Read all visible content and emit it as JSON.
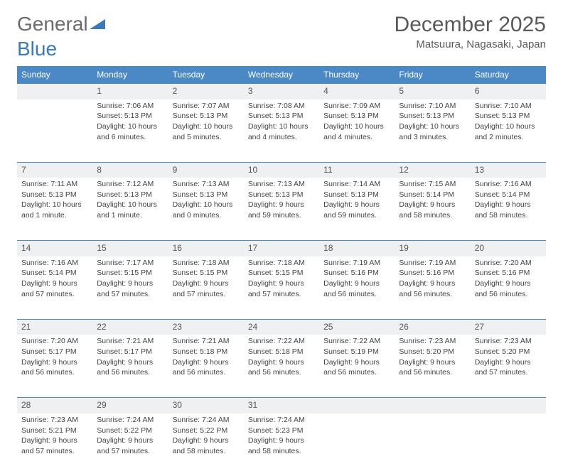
{
  "logo": {
    "text1": "General",
    "text2": "Blue"
  },
  "title": "December 2025",
  "location": "Matsuura, Nagasaki, Japan",
  "colors": {
    "header_bg": "#4a89c6",
    "header_fg": "#ffffff",
    "daynum_bg": "#eef0f2",
    "border": "#4a89c6",
    "logo_gray": "#6b6b6b",
    "logo_blue": "#3a7ab8",
    "text": "#444444"
  },
  "weekdays": [
    "Sunday",
    "Monday",
    "Tuesday",
    "Wednesday",
    "Thursday",
    "Friday",
    "Saturday"
  ],
  "weeks": [
    [
      null,
      {
        "n": "1",
        "sr": "Sunrise: 7:06 AM",
        "ss": "Sunset: 5:13 PM",
        "d1": "Daylight: 10 hours",
        "d2": "and 6 minutes."
      },
      {
        "n": "2",
        "sr": "Sunrise: 7:07 AM",
        "ss": "Sunset: 5:13 PM",
        "d1": "Daylight: 10 hours",
        "d2": "and 5 minutes."
      },
      {
        "n": "3",
        "sr": "Sunrise: 7:08 AM",
        "ss": "Sunset: 5:13 PM",
        "d1": "Daylight: 10 hours",
        "d2": "and 4 minutes."
      },
      {
        "n": "4",
        "sr": "Sunrise: 7:09 AM",
        "ss": "Sunset: 5:13 PM",
        "d1": "Daylight: 10 hours",
        "d2": "and 4 minutes."
      },
      {
        "n": "5",
        "sr": "Sunrise: 7:10 AM",
        "ss": "Sunset: 5:13 PM",
        "d1": "Daylight: 10 hours",
        "d2": "and 3 minutes."
      },
      {
        "n": "6",
        "sr": "Sunrise: 7:10 AM",
        "ss": "Sunset: 5:13 PM",
        "d1": "Daylight: 10 hours",
        "d2": "and 2 minutes."
      }
    ],
    [
      {
        "n": "7",
        "sr": "Sunrise: 7:11 AM",
        "ss": "Sunset: 5:13 PM",
        "d1": "Daylight: 10 hours",
        "d2": "and 1 minute."
      },
      {
        "n": "8",
        "sr": "Sunrise: 7:12 AM",
        "ss": "Sunset: 5:13 PM",
        "d1": "Daylight: 10 hours",
        "d2": "and 1 minute."
      },
      {
        "n": "9",
        "sr": "Sunrise: 7:13 AM",
        "ss": "Sunset: 5:13 PM",
        "d1": "Daylight: 10 hours",
        "d2": "and 0 minutes."
      },
      {
        "n": "10",
        "sr": "Sunrise: 7:13 AM",
        "ss": "Sunset: 5:13 PM",
        "d1": "Daylight: 9 hours",
        "d2": "and 59 minutes."
      },
      {
        "n": "11",
        "sr": "Sunrise: 7:14 AM",
        "ss": "Sunset: 5:13 PM",
        "d1": "Daylight: 9 hours",
        "d2": "and 59 minutes."
      },
      {
        "n": "12",
        "sr": "Sunrise: 7:15 AM",
        "ss": "Sunset: 5:14 PM",
        "d1": "Daylight: 9 hours",
        "d2": "and 58 minutes."
      },
      {
        "n": "13",
        "sr": "Sunrise: 7:16 AM",
        "ss": "Sunset: 5:14 PM",
        "d1": "Daylight: 9 hours",
        "d2": "and 58 minutes."
      }
    ],
    [
      {
        "n": "14",
        "sr": "Sunrise: 7:16 AM",
        "ss": "Sunset: 5:14 PM",
        "d1": "Daylight: 9 hours",
        "d2": "and 57 minutes."
      },
      {
        "n": "15",
        "sr": "Sunrise: 7:17 AM",
        "ss": "Sunset: 5:15 PM",
        "d1": "Daylight: 9 hours",
        "d2": "and 57 minutes."
      },
      {
        "n": "16",
        "sr": "Sunrise: 7:18 AM",
        "ss": "Sunset: 5:15 PM",
        "d1": "Daylight: 9 hours",
        "d2": "and 57 minutes."
      },
      {
        "n": "17",
        "sr": "Sunrise: 7:18 AM",
        "ss": "Sunset: 5:15 PM",
        "d1": "Daylight: 9 hours",
        "d2": "and 57 minutes."
      },
      {
        "n": "18",
        "sr": "Sunrise: 7:19 AM",
        "ss": "Sunset: 5:16 PM",
        "d1": "Daylight: 9 hours",
        "d2": "and 56 minutes."
      },
      {
        "n": "19",
        "sr": "Sunrise: 7:19 AM",
        "ss": "Sunset: 5:16 PM",
        "d1": "Daylight: 9 hours",
        "d2": "and 56 minutes."
      },
      {
        "n": "20",
        "sr": "Sunrise: 7:20 AM",
        "ss": "Sunset: 5:16 PM",
        "d1": "Daylight: 9 hours",
        "d2": "and 56 minutes."
      }
    ],
    [
      {
        "n": "21",
        "sr": "Sunrise: 7:20 AM",
        "ss": "Sunset: 5:17 PM",
        "d1": "Daylight: 9 hours",
        "d2": "and 56 minutes."
      },
      {
        "n": "22",
        "sr": "Sunrise: 7:21 AM",
        "ss": "Sunset: 5:17 PM",
        "d1": "Daylight: 9 hours",
        "d2": "and 56 minutes."
      },
      {
        "n": "23",
        "sr": "Sunrise: 7:21 AM",
        "ss": "Sunset: 5:18 PM",
        "d1": "Daylight: 9 hours",
        "d2": "and 56 minutes."
      },
      {
        "n": "24",
        "sr": "Sunrise: 7:22 AM",
        "ss": "Sunset: 5:18 PM",
        "d1": "Daylight: 9 hours",
        "d2": "and 56 minutes."
      },
      {
        "n": "25",
        "sr": "Sunrise: 7:22 AM",
        "ss": "Sunset: 5:19 PM",
        "d1": "Daylight: 9 hours",
        "d2": "and 56 minutes."
      },
      {
        "n": "26",
        "sr": "Sunrise: 7:23 AM",
        "ss": "Sunset: 5:20 PM",
        "d1": "Daylight: 9 hours",
        "d2": "and 56 minutes."
      },
      {
        "n": "27",
        "sr": "Sunrise: 7:23 AM",
        "ss": "Sunset: 5:20 PM",
        "d1": "Daylight: 9 hours",
        "d2": "and 57 minutes."
      }
    ],
    [
      {
        "n": "28",
        "sr": "Sunrise: 7:23 AM",
        "ss": "Sunset: 5:21 PM",
        "d1": "Daylight: 9 hours",
        "d2": "and 57 minutes."
      },
      {
        "n": "29",
        "sr": "Sunrise: 7:24 AM",
        "ss": "Sunset: 5:22 PM",
        "d1": "Daylight: 9 hours",
        "d2": "and 57 minutes."
      },
      {
        "n": "30",
        "sr": "Sunrise: 7:24 AM",
        "ss": "Sunset: 5:22 PM",
        "d1": "Daylight: 9 hours",
        "d2": "and 58 minutes."
      },
      {
        "n": "31",
        "sr": "Sunrise: 7:24 AM",
        "ss": "Sunset: 5:23 PM",
        "d1": "Daylight: 9 hours",
        "d2": "and 58 minutes."
      },
      null,
      null,
      null
    ]
  ]
}
